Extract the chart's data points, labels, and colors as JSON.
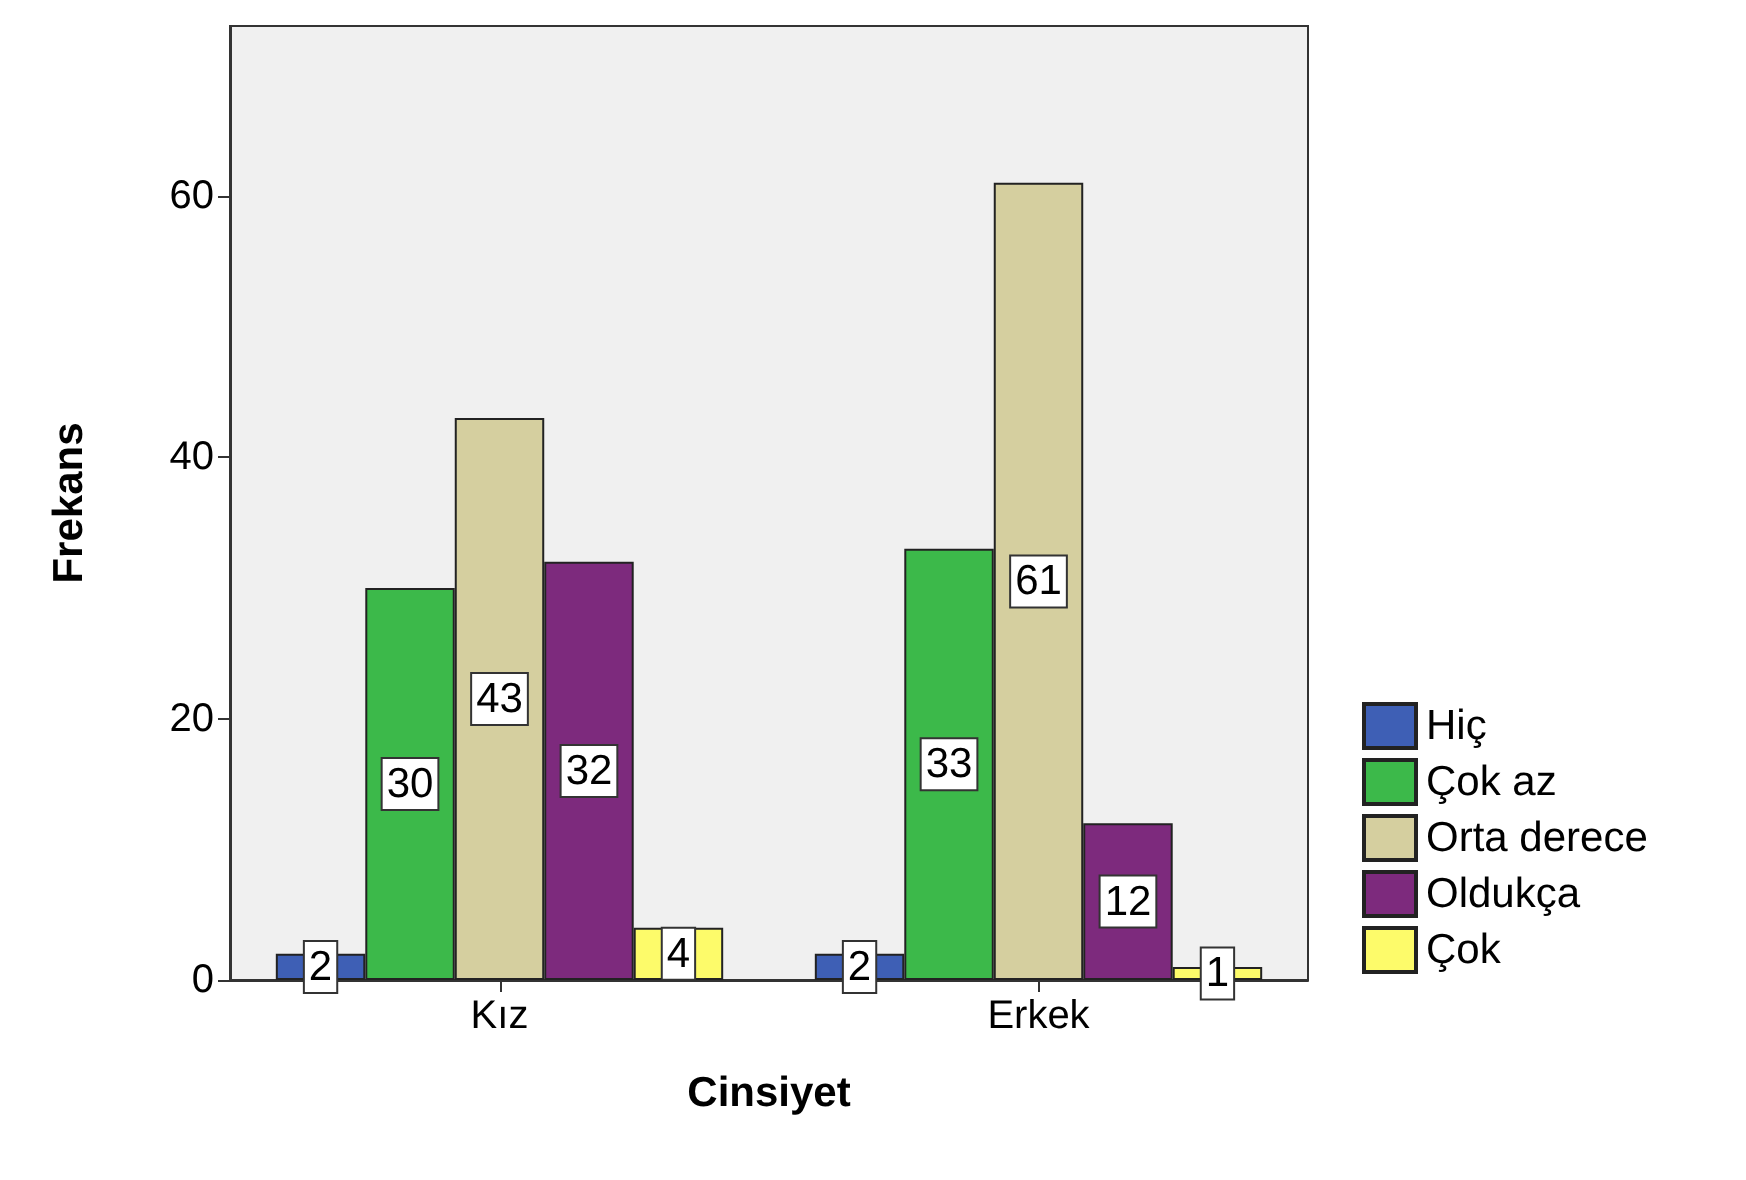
{
  "chart_data": {
    "type": "bar",
    "xlabel": "Cinsiyet",
    "ylabel": "Frekans",
    "categories": [
      "Kız",
      "Erkek"
    ],
    "series": [
      {
        "name": "Hiç",
        "color": "#3e5fb5",
        "values": [
          2,
          2
        ]
      },
      {
        "name": "Çok az",
        "color": "#3cb94a",
        "values": [
          30,
          33
        ]
      },
      {
        "name": "Orta derece",
        "color": "#d5cf9f",
        "values": [
          43,
          61
        ]
      },
      {
        "name": "Oldukça",
        "color": "#7d2a7d",
        "values": [
          32,
          12
        ]
      },
      {
        "name": "Çok",
        "color": "#fdfb6a",
        "values": [
          4,
          1
        ]
      }
    ],
    "ylim": [
      0,
      73
    ],
    "yticks": [
      0,
      20,
      40,
      60
    ],
    "grid": false,
    "legend": "right",
    "data_labels": true
  }
}
